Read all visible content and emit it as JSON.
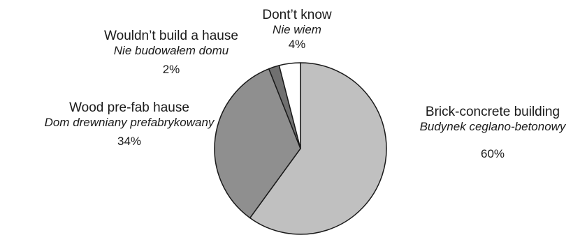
{
  "chart_data": {
    "type": "pie",
    "title": "",
    "slices": [
      {
        "label": "Brick-concrete building",
        "label_pl": "Budynek ceglano-betonowy",
        "value": 60,
        "value_label": "60%",
        "color": "#c0c0c0"
      },
      {
        "label": "Wood pre-fab hause",
        "label_pl": "Dom drewniany prefabrykowany",
        "value": 34,
        "value_label": "34%",
        "color": "#8f8f8f"
      },
      {
        "label": "Wouldn’t build a hause",
        "label_pl": "Nie budowałem domu",
        "value": 2,
        "value_label": "2%",
        "color": "#707070"
      },
      {
        "label": "Dont’t know",
        "label_pl": "Nie wiem",
        "value": 4,
        "value_label": "4%",
        "color": "#ffffff"
      }
    ],
    "start": "12 o'clock",
    "direction": "clockwise",
    "legend": "none",
    "edge_color": "#1a1a1a"
  }
}
